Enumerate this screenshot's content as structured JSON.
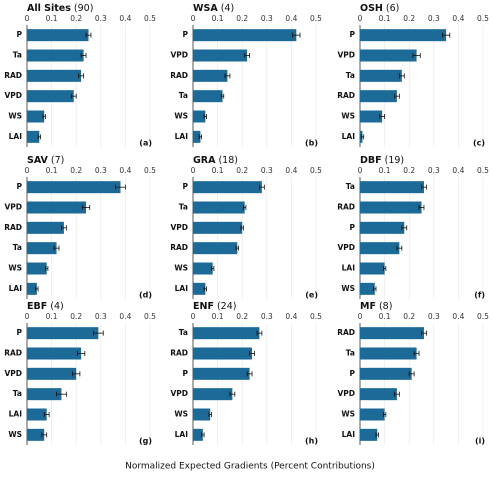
{
  "chart_data": [
    {
      "type": "bar",
      "title": "All Sites",
      "count": "(90)",
      "label": "(a)",
      "color": "#1b6a98",
      "xlim": [
        0,
        0.5
      ],
      "xticks": [
        0,
        0.1,
        0.2,
        0.3,
        0.4,
        0.5
      ],
      "categories": [
        "P",
        "Ta",
        "RAD",
        "VPD",
        "WS",
        "LAI"
      ],
      "values": [
        0.25,
        0.23,
        0.22,
        0.19,
        0.07,
        0.05
      ],
      "errors": [
        0.01,
        0.01,
        0.01,
        0.01,
        0.005,
        0.005
      ]
    },
    {
      "type": "bar",
      "title": "WSA",
      "count": "(4)",
      "label": "(b)",
      "color": "#1b6a98",
      "xlim": [
        0,
        0.5
      ],
      "xticks": [
        0,
        0.1,
        0.2,
        0.3,
        0.4,
        0.5
      ],
      "categories": [
        "P",
        "VPD",
        "RAD",
        "Ta",
        "WS",
        "LAI"
      ],
      "values": [
        0.42,
        0.22,
        0.14,
        0.12,
        0.05,
        0.03
      ],
      "errors": [
        0.015,
        0.01,
        0.01,
        0.005,
        0.005,
        0.005
      ]
    },
    {
      "type": "bar",
      "title": "OSH",
      "count": "(6)",
      "label": "(c)",
      "color": "#1b6a98",
      "xlim": [
        0,
        0.5
      ],
      "xticks": [
        0,
        0.1,
        0.2,
        0.3,
        0.4,
        0.5
      ],
      "categories": [
        "P",
        "VPD",
        "Ta",
        "RAD",
        "WS",
        "LAI"
      ],
      "values": [
        0.35,
        0.23,
        0.17,
        0.15,
        0.09,
        0.01
      ],
      "errors": [
        0.015,
        0.015,
        0.01,
        0.01,
        0.01,
        0.005
      ]
    },
    {
      "type": "bar",
      "title": "SAV",
      "count": "(7)",
      "label": "(d)",
      "color": "#1b6a98",
      "xlim": [
        0,
        0.5
      ],
      "xticks": [
        0,
        0.1,
        0.2,
        0.3,
        0.4,
        0.5
      ],
      "categories": [
        "P",
        "VPD",
        "RAD",
        "Ta",
        "WS",
        "LAI"
      ],
      "values": [
        0.38,
        0.24,
        0.15,
        0.12,
        0.08,
        0.04
      ],
      "errors": [
        0.02,
        0.015,
        0.01,
        0.01,
        0.005,
        0.005
      ]
    },
    {
      "type": "bar",
      "title": "GRA",
      "count": "(18)",
      "label": "(e)",
      "color": "#1b6a98",
      "xlim": [
        0,
        0.5
      ],
      "xticks": [
        0,
        0.1,
        0.2,
        0.3,
        0.4,
        0.5
      ],
      "categories": [
        "P",
        "Ta",
        "VPD",
        "RAD",
        "WS",
        "LAI"
      ],
      "values": [
        0.28,
        0.21,
        0.2,
        0.18,
        0.08,
        0.05
      ],
      "errors": [
        0.01,
        0.005,
        0.005,
        0.005,
        0.005,
        0.005
      ]
    },
    {
      "type": "bar",
      "title": "DBF",
      "count": "(19)",
      "label": "(f)",
      "color": "#1b6a98",
      "xlim": [
        0,
        0.5
      ],
      "xticks": [
        0,
        0.1,
        0.2,
        0.3,
        0.4,
        0.5
      ],
      "categories": [
        "Ta",
        "RAD",
        "P",
        "VPD",
        "LAI",
        "WS"
      ],
      "values": [
        0.26,
        0.25,
        0.18,
        0.16,
        0.1,
        0.06
      ],
      "errors": [
        0.01,
        0.01,
        0.01,
        0.01,
        0.005,
        0.005
      ]
    },
    {
      "type": "bar",
      "title": "EBF",
      "count": "(4)",
      "label": "(g)",
      "color": "#1b6a98",
      "xlim": [
        0,
        0.5
      ],
      "xticks": [
        0,
        0.1,
        0.2,
        0.3,
        0.4,
        0.5
      ],
      "categories": [
        "P",
        "RAD",
        "VPD",
        "Ta",
        "LAI",
        "WS"
      ],
      "values": [
        0.29,
        0.22,
        0.2,
        0.14,
        0.08,
        0.07
      ],
      "errors": [
        0.02,
        0.015,
        0.015,
        0.02,
        0.01,
        0.01
      ]
    },
    {
      "type": "bar",
      "title": "ENF",
      "count": "(24)",
      "label": "(h)",
      "color": "#1b6a98",
      "xlim": [
        0,
        0.5
      ],
      "xticks": [
        0,
        0.1,
        0.2,
        0.3,
        0.4,
        0.5
      ],
      "categories": [
        "Ta",
        "RAD",
        "P",
        "VPD",
        "WS",
        "LAI"
      ],
      "values": [
        0.27,
        0.24,
        0.23,
        0.16,
        0.07,
        0.04
      ],
      "errors": [
        0.01,
        0.01,
        0.01,
        0.01,
        0.005,
        0.005
      ]
    },
    {
      "type": "bar",
      "title": "MF",
      "count": "(8)",
      "label": "(i)",
      "color": "#1b6a98",
      "xlim": [
        0,
        0.5
      ],
      "xticks": [
        0,
        0.1,
        0.2,
        0.3,
        0.4,
        0.5
      ],
      "categories": [
        "RAD",
        "Ta",
        "P",
        "VPD",
        "WS",
        "LAI"
      ],
      "values": [
        0.26,
        0.23,
        0.21,
        0.15,
        0.1,
        0.07
      ],
      "errors": [
        0.01,
        0.01,
        0.01,
        0.01,
        0.005,
        0.005
      ]
    }
  ],
  "xlabel": "Normalized Expected Gradients (Percent Contributions)"
}
